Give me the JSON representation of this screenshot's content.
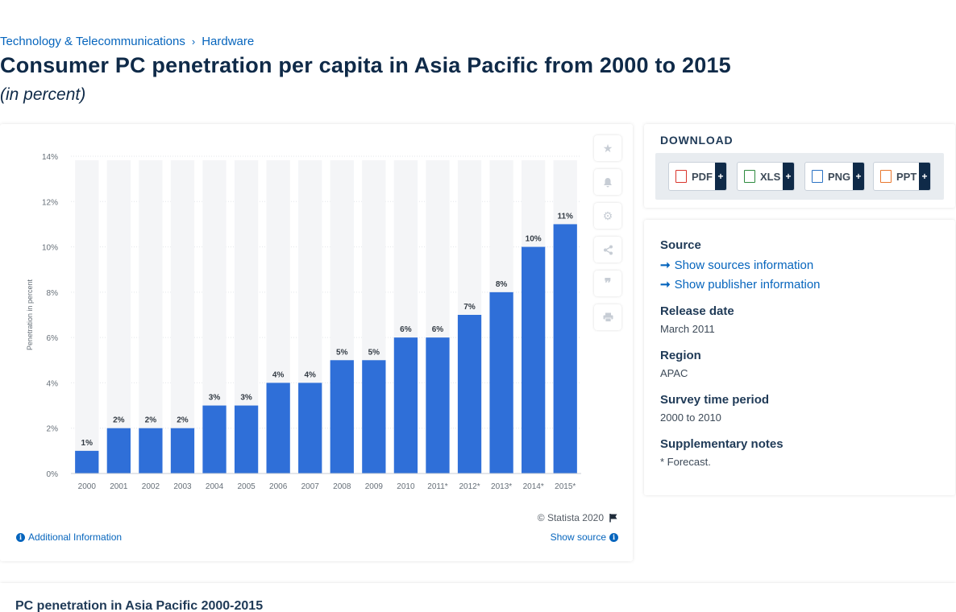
{
  "breadcrumb": {
    "category": "Technology & Telecommunications",
    "separator": "›",
    "subcategory": "Hardware"
  },
  "header": {
    "title": "Consumer PC penetration per capita in Asia Pacific from 2000 to 2015",
    "subtitle": "(in percent)"
  },
  "chart": {
    "credit": "© Statista 2020",
    "additional_info": "Additional Information",
    "show_source": "Show source"
  },
  "toolbar": {
    "icons": [
      "star-icon",
      "bell-icon",
      "gear-icon",
      "share-icon",
      "quote-icon",
      "print-icon"
    ]
  },
  "download": {
    "title": "DOWNLOAD",
    "buttons": [
      {
        "label": "PDF",
        "color": "#d9342b"
      },
      {
        "label": "XLS",
        "color": "#2d8a3e"
      },
      {
        "label": "PNG",
        "color": "#2a72c4"
      },
      {
        "label": "PPT",
        "color": "#e8772e"
      }
    ],
    "plus": "+"
  },
  "meta": {
    "source_heading": "Source",
    "show_sources": "Show sources information",
    "show_publisher": "Show publisher information",
    "release_heading": "Release date",
    "release_value": "March 2011",
    "region_heading": "Region",
    "region_value": "APAC",
    "survey_heading": "Survey time period",
    "survey_value": "2000 to 2010",
    "notes_heading": "Supplementary notes",
    "notes_value": "* Forecast."
  },
  "bottom": {
    "title": "PC penetration in Asia Pacific 2000-2015"
  },
  "colors": {
    "bar": "#2f6fd8",
    "bar_bg": "#f4f5f7",
    "link": "#0665bd",
    "navy": "#0f2a48"
  },
  "chart_data": {
    "type": "bar",
    "categories": [
      "2000",
      "2001",
      "2002",
      "2003",
      "2004",
      "2005",
      "2006",
      "2007",
      "2008",
      "2009",
      "2010",
      "2011*",
      "2012*",
      "2013*",
      "2014*",
      "2015*"
    ],
    "values": [
      1,
      2,
      2,
      2,
      3,
      3,
      4,
      4,
      5,
      5,
      6,
      6,
      7,
      8,
      10,
      11
    ],
    "data_labels": [
      "1%",
      "2%",
      "2%",
      "2%",
      "3%",
      "3%",
      "4%",
      "4%",
      "5%",
      "5%",
      "6%",
      "6%",
      "7%",
      "8%",
      "10%",
      "11%"
    ],
    "ylabel": "Penetration in percent",
    "ylim": [
      0,
      14
    ],
    "yticks": [
      0,
      2,
      4,
      6,
      8,
      10,
      12,
      14
    ],
    "ytick_labels": [
      "0%",
      "2%",
      "4%",
      "6%",
      "8%",
      "10%",
      "12%",
      "14%"
    ],
    "grid": true
  }
}
